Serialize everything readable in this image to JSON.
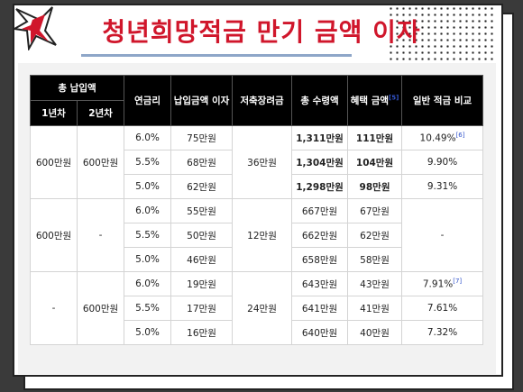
{
  "title": "청년희망적금 만기 금액 이자",
  "table": {
    "header": {
      "total_payment": "총 납입액",
      "year1": "1년차",
      "year2": "2년차",
      "rate": "연금리",
      "interest": "납입금액 이자",
      "bonus": "저축장려금",
      "total_receive": "총 수령액",
      "benefit": "혜택 금액",
      "benefit_ref": "[5]",
      "compare": "일반 적금 비교"
    },
    "groups": [
      {
        "year1": "600만원",
        "year2": "600만원",
        "bonus": "36만원",
        "rows": [
          {
            "rate": "6.0%",
            "interest": "75만원",
            "total": "1,311만원",
            "benefit": "111만원",
            "compare": "10.49%",
            "compare_ref": "[6]"
          },
          {
            "rate": "5.5%",
            "interest": "68만원",
            "total": "1,304만원",
            "benefit": "104만원",
            "compare": "9.90%",
            "compare_ref": ""
          },
          {
            "rate": "5.0%",
            "interest": "62만원",
            "total": "1,298만원",
            "benefit": "98만원",
            "compare": "9.31%",
            "compare_ref": ""
          }
        ]
      },
      {
        "year1": "600만원",
        "year2": "-",
        "bonus": "12만원",
        "compare_all": "-",
        "rows": [
          {
            "rate": "6.0%",
            "interest": "55만원",
            "total": "667만원",
            "benefit": "67만원"
          },
          {
            "rate": "5.5%",
            "interest": "50만원",
            "total": "662만원",
            "benefit": "62만원"
          },
          {
            "rate": "5.0%",
            "interest": "46만원",
            "total": "658만원",
            "benefit": "58만원"
          }
        ]
      },
      {
        "year1": "-",
        "year2": "600만원",
        "bonus": "24만원",
        "rows": [
          {
            "rate": "6.0%",
            "interest": "19만원",
            "total": "643만원",
            "benefit": "43만원",
            "compare": "7.91%",
            "compare_ref": "[7]"
          },
          {
            "rate": "5.5%",
            "interest": "17만원",
            "total": "641만원",
            "benefit": "41만원",
            "compare": "7.61%",
            "compare_ref": ""
          },
          {
            "rate": "5.0%",
            "interest": "16만원",
            "total": "640만원",
            "benefit": "40만원",
            "compare": "7.32%",
            "compare_ref": ""
          }
        ]
      }
    ]
  }
}
